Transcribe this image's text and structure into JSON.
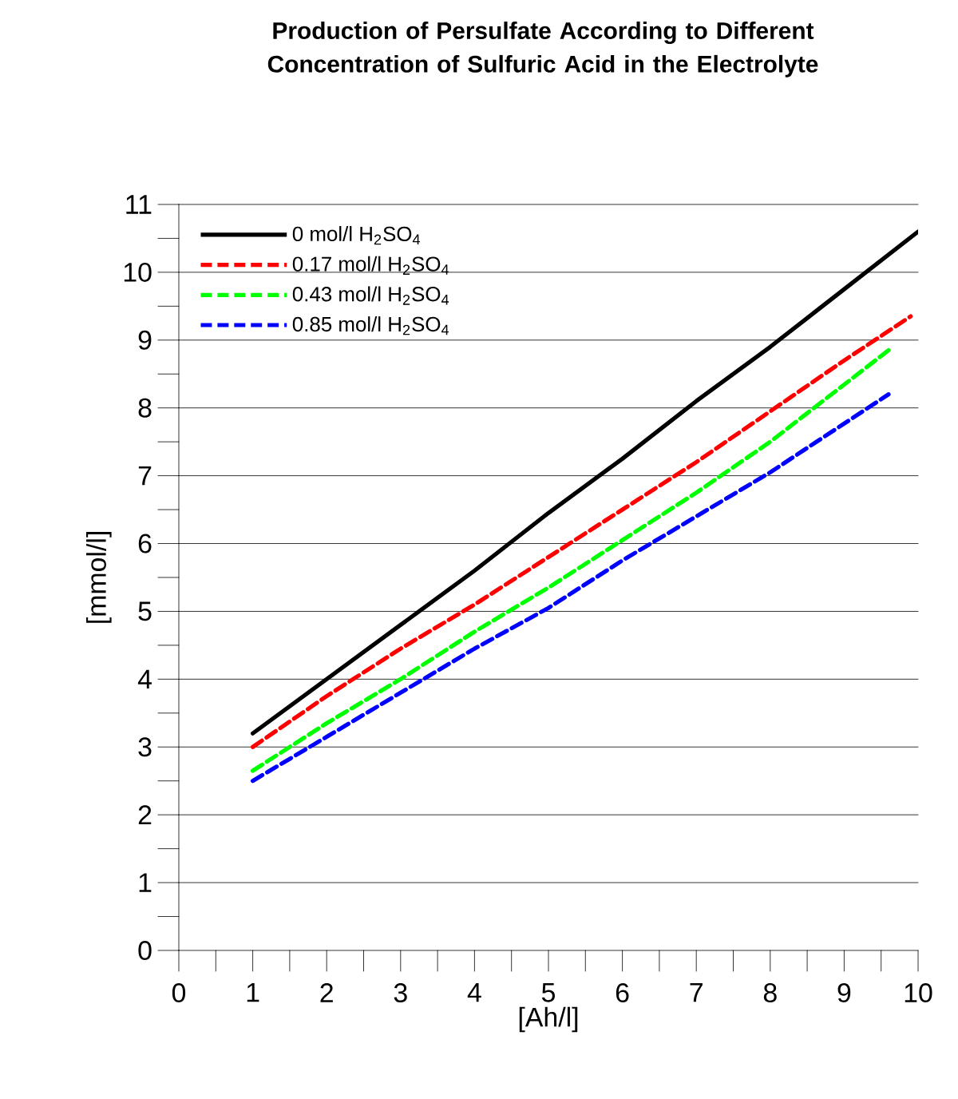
{
  "chart_data": {
    "type": "line",
    "title": "Production of Persulfate According to Different Concentration of Sulfuric Acid in the Electrolyte",
    "xlabel": "[Ah/l]",
    "ylabel": "[mmol/l]",
    "xlim": [
      0,
      10
    ],
    "ylim": [
      0,
      11
    ],
    "xticks": [
      0,
      1,
      2,
      3,
      4,
      5,
      6,
      7,
      8,
      9,
      10
    ],
    "yticks": [
      0,
      1,
      2,
      3,
      4,
      5,
      6,
      7,
      8,
      9,
      10,
      11
    ],
    "grid": "y",
    "legend": "top left",
    "marker": "none",
    "series": [
      {
        "name": "0 mol/l H$_{2}$SO$_{4}$",
        "color": "#000000",
        "line_style": "solid",
        "x": [
          1,
          2,
          3,
          4,
          5,
          6,
          7,
          8,
          9,
          10
        ],
        "values": [
          3.2,
          4.0,
          4.8,
          5.6,
          6.45,
          7.25,
          8.1,
          8.9,
          9.75,
          10.6
        ]
      },
      {
        "name": "0.17 mol/l H$_{2}$SO$_{4}$",
        "color": "#ff0000",
        "line_style": "dashed",
        "x": [
          1,
          2,
          3,
          4,
          5,
          6,
          7,
          8,
          9,
          9.9
        ],
        "values": [
          3.0,
          3.75,
          4.45,
          5.1,
          5.8,
          6.5,
          7.2,
          7.95,
          8.7,
          9.35
        ]
      },
      {
        "name": "0.43 mol/l H$_{2}$SO$_{4}$",
        "color": "#00ff00",
        "line_style": "dashed",
        "x": [
          1,
          2,
          3,
          4,
          5,
          6,
          7,
          8,
          9.6
        ],
        "values": [
          2.65,
          3.35,
          4.0,
          4.7,
          5.35,
          6.05,
          6.75,
          7.5,
          8.85
        ]
      },
      {
        "name": "0.85 mol/l H$_{2}$SO$_{4}$",
        "color": "#0000ff",
        "line_style": "dashed",
        "x": [
          1,
          2,
          3,
          4,
          5,
          6,
          7,
          8,
          9.6
        ],
        "values": [
          2.5,
          3.15,
          3.8,
          4.45,
          5.05,
          5.75,
          6.4,
          7.05,
          8.2
        ]
      }
    ]
  }
}
